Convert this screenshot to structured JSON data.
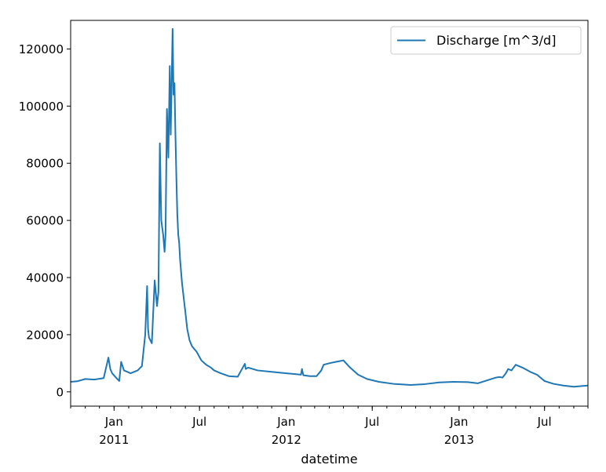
{
  "chart_data": {
    "type": "line",
    "xlabel": "datetime",
    "ylabel": "",
    "x_range": [
      "2010-10-01",
      "2013-09-30"
    ],
    "ylim": [
      -5000,
      130000
    ],
    "grid": false,
    "legend_position": "top-right",
    "line_color": "#1f77b4",
    "y_ticks": [
      0,
      20000,
      40000,
      60000,
      80000,
      100000,
      120000
    ],
    "y_tick_labels": [
      "0",
      "20000",
      "40000",
      "60000",
      "80000",
      "100000",
      "120000"
    ],
    "x_major_ticks": [
      {
        "date": "2011-01-01",
        "label": "Jan",
        "year_label": "2011"
      },
      {
        "date": "2011-07-01",
        "label": "Jul",
        "year_label": ""
      },
      {
        "date": "2012-01-01",
        "label": "Jan",
        "year_label": "2012"
      },
      {
        "date": "2012-07-01",
        "label": "Jul",
        "year_label": ""
      },
      {
        "date": "2013-01-01",
        "label": "Jan",
        "year_label": "2013"
      },
      {
        "date": "2013-07-01",
        "label": "Jul",
        "year_label": ""
      }
    ],
    "series": [
      {
        "name": "Discharge [m^3/d]",
        "x": [
          "2010-10-01",
          "2010-10-15",
          "2010-11-01",
          "2010-11-20",
          "2010-12-10",
          "2010-12-20",
          "2010-12-24",
          "2010-12-28",
          "2011-01-05",
          "2011-01-12",
          "2011-01-16",
          "2011-01-22",
          "2011-02-05",
          "2011-02-20",
          "2011-03-01",
          "2011-03-08",
          "2011-03-12",
          "2011-03-14",
          "2011-03-16",
          "2011-03-22",
          "2011-03-28",
          "2011-04-02",
          "2011-04-05",
          "2011-04-08",
          "2011-04-11",
          "2011-04-15",
          "2011-04-18",
          "2011-04-20",
          "2011-04-23",
          "2011-04-26",
          "2011-04-29",
          "2011-05-01",
          "2011-05-03",
          "2011-05-05",
          "2011-05-07",
          "2011-05-09",
          "2011-05-11",
          "2011-05-13",
          "2011-05-15",
          "2011-05-17",
          "2011-05-19",
          "2011-05-21",
          "2011-05-25",
          "2011-06-01",
          "2011-06-05",
          "2011-06-10",
          "2011-06-15",
          "2011-06-25",
          "2011-07-05",
          "2011-07-15",
          "2011-07-25",
          "2011-08-01",
          "2011-08-15",
          "2011-09-01",
          "2011-09-20",
          "2011-10-05",
          "2011-10-07",
          "2011-10-12",
          "2011-11-01",
          "2011-12-01",
          "2012-01-01",
          "2012-01-20",
          "2012-02-01",
          "2012-02-03",
          "2012-02-06",
          "2012-02-20",
          "2012-03-05",
          "2012-03-15",
          "2012-03-20",
          "2012-04-01",
          "2012-04-15",
          "2012-05-01",
          "2012-05-15",
          "2012-06-01",
          "2012-06-20",
          "2012-07-15",
          "2012-08-15",
          "2012-09-20",
          "2012-10-20",
          "2012-11-20",
          "2012-12-20",
          "2013-01-20",
          "2013-02-10",
          "2013-03-01",
          "2013-03-20",
          "2013-03-28",
          "2013-04-03",
          "2013-04-10",
          "2013-04-15",
          "2013-04-22",
          "2013-05-01",
          "2013-05-15",
          "2013-06-01",
          "2013-06-15",
          "2013-07-01",
          "2013-07-20",
          "2013-08-10",
          "2013-09-01",
          "2013-09-30"
        ],
        "values": [
          3500,
          3700,
          4500,
          4300,
          4800,
          12000,
          8000,
          6500,
          5000,
          3800,
          10500,
          7500,
          6500,
          7500,
          9000,
          20000,
          37000,
          22000,
          19000,
          17000,
          39000,
          30000,
          35000,
          87000,
          60000,
          55000,
          49000,
          55000,
          99000,
          82000,
          114000,
          90000,
          108000,
          127000,
          104000,
          108000,
          90000,
          75000,
          62000,
          55000,
          52000,
          46000,
          38000,
          28000,
          22000,
          18000,
          16000,
          14000,
          11000,
          9500,
          8500,
          7500,
          6500,
          5500,
          5300,
          9800,
          8000,
          8500,
          7500,
          7000,
          6500,
          6200,
          6000,
          8000,
          5800,
          5500,
          5500,
          7500,
          9500,
          10000,
          10500,
          11000,
          8500,
          6000,
          4500,
          3500,
          2800,
          2400,
          2700,
          3300,
          3500,
          3400,
          3000,
          4000,
          5000,
          5200,
          5000,
          6500,
          8000,
          7500,
          9500,
          8500,
          7000,
          6000,
          3800,
          2800,
          2200,
          1800,
          2200
        ]
      }
    ]
  }
}
